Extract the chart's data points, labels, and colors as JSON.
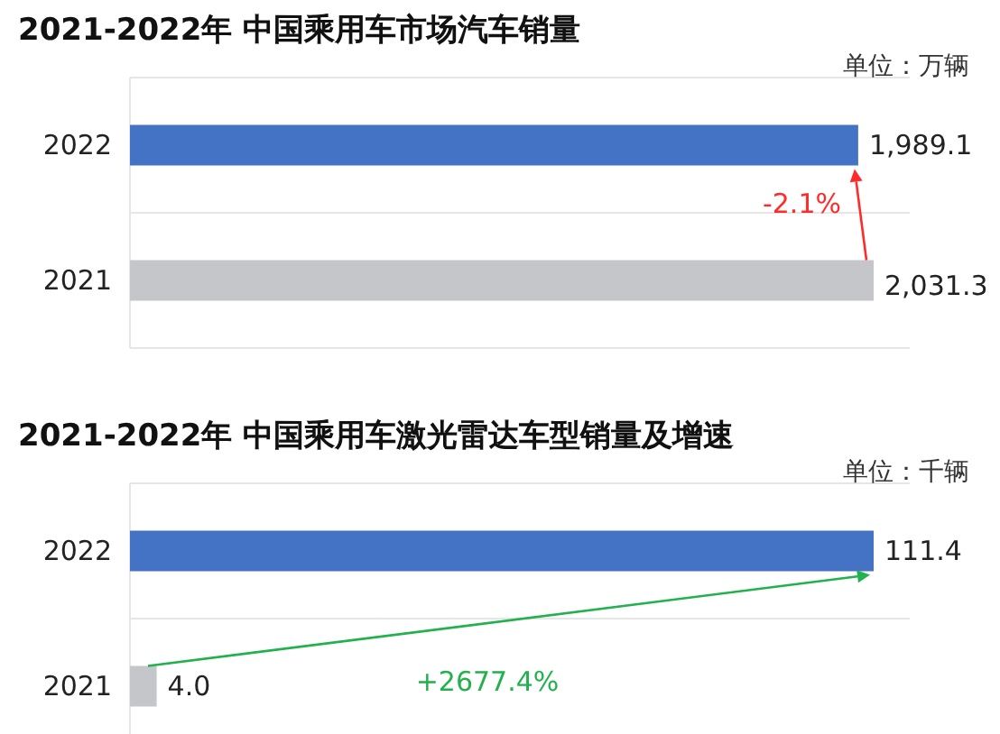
{
  "chart_data": [
    {
      "type": "bar",
      "orientation": "horizontal",
      "title": "2021-2022年 中国乘用车市场汽车销量",
      "categories": [
        "2022",
        "2021"
      ],
      "values": [
        1989.1,
        2031.3
      ],
      "colors": [
        "#4472c4",
        "#c5c6ca"
      ],
      "value_labels": [
        "1,989.1",
        "2,031.3"
      ],
      "grid": "y",
      "annotations": [
        "单位：万辆",
        "-2.1%"
      ]
    },
    {
      "type": "bar",
      "orientation": "horizontal",
      "title": "2021-2022年 中国乘用车激光雷达车型销量及增速",
      "categories": [
        "2022",
        "2021"
      ],
      "values": [
        111.4,
        4.0
      ],
      "colors": [
        "#4472c4",
        "#c5c6ca"
      ],
      "value_labels": [
        "111.4",
        "4.0"
      ],
      "grid": "y",
      "annotations": [
        "单位：千辆",
        "+2677.4%"
      ]
    }
  ]
}
